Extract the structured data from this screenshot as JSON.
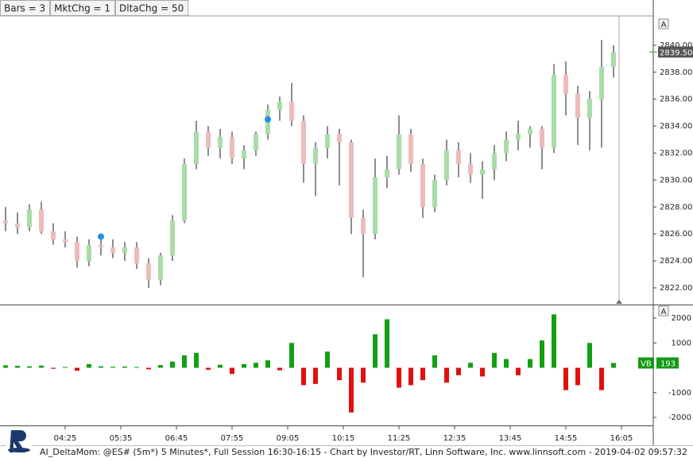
{
  "toolbar": [
    "Bars = 3",
    "MktChg = 1",
    "DltaChg = 50"
  ],
  "panel_buttons": [
    "A",
    "A"
  ],
  "footer": "AI_DeltaMom: @ES# (5m*) 5 Minutes*, Full Session 16:30-16:15 - Chart by Investor/RT, Linn Software, Inc. www.linnsoft.com - 2019-04-02 09:57:32",
  "chart_data": [
    {
      "type": "candlestick",
      "x": [
        190,
        205,
        220,
        235,
        250,
        265,
        280,
        295,
        310,
        325,
        340,
        355,
        370,
        385,
        400,
        415,
        430,
        445,
        460,
        475,
        490,
        505,
        520,
        535,
        550,
        565,
        580,
        595,
        610,
        625,
        640,
        655,
        670,
        685,
        700,
        715,
        730,
        745,
        760,
        775,
        790,
        805,
        820,
        835,
        850,
        865,
        880,
        895,
        910,
        925,
        940,
        955
      ],
      "open": [
        2827,
        2826.8,
        2826.5,
        2827.8,
        2826.2,
        2825.6,
        2825.4,
        2824,
        2825.2,
        2825,
        2824.6,
        2825,
        2823.8,
        2822.6,
        2824.4,
        2827,
        2831.2,
        2833.6,
        2832.4,
        2833.2,
        2831.6,
        2832.2,
        2833.4,
        2835.2,
        2835.8,
        2834.4,
        2831.2,
        2832.4,
        2833.4,
        2832.8,
        2827.2,
        2826,
        2830.2,
        2830.8,
        2833.4,
        2831.2,
        2828,
        2830,
        2832.2,
        2831.2,
        2830.4,
        2830.8,
        2832,
        2833,
        2833.4,
        2833.8,
        2832.4,
        2837.8,
        2836.4,
        2834.6,
        2836,
        2838.4
      ],
      "high": [
        2828,
        2827.6,
        2828.2,
        2828.4,
        2826.8,
        2826.2,
        2825.8,
        2825.6,
        2826,
        2825.6,
        2825.4,
        2825.4,
        2824.2,
        2824.6,
        2827.4,
        2831.6,
        2834.4,
        2834,
        2833.8,
        2833.6,
        2832.6,
        2833.6,
        2835.6,
        2836.2,
        2837.2,
        2834.8,
        2832.8,
        2834,
        2833.8,
        2833,
        2827.8,
        2831.6,
        2831.8,
        2834.8,
        2833.8,
        2831.6,
        2830.4,
        2833,
        2832.8,
        2832,
        2831.4,
        2832.6,
        2833.6,
        2834.4,
        2834,
        2834,
        2838.6,
        2838.8,
        2837,
        2836.6,
        2840.4,
        2840
      ],
      "low": [
        2826.2,
        2826,
        2826.2,
        2826,
        2825.2,
        2825,
        2823.5,
        2823.6,
        2824.4,
        2824.2,
        2824,
        2823.4,
        2822,
        2822.2,
        2824,
        2826.8,
        2830.8,
        2831.8,
        2831.6,
        2831.2,
        2830.8,
        2831.8,
        2833,
        2834.4,
        2834,
        2829.8,
        2828.8,
        2831.6,
        2829.6,
        2826,
        2822.8,
        2825.6,
        2829.4,
        2830.4,
        2830.6,
        2827.2,
        2827.6,
        2829.6,
        2830.2,
        2829.8,
        2828.6,
        2830,
        2831.4,
        2832.2,
        2832.4,
        2830.8,
        2832,
        2834.8,
        2832.6,
        2832.2,
        2832.4,
        2837.6
      ],
      "close": [
        2826.8,
        2826.5,
        2827.8,
        2826.2,
        2825.6,
        2825.4,
        2824,
        2825.2,
        2825,
        2824.6,
        2825,
        2823.8,
        2822.6,
        2824.4,
        2827,
        2831.2,
        2833.6,
        2832.4,
        2833.2,
        2831.6,
        2832.2,
        2833.4,
        2835.2,
        2835.8,
        2834.4,
        2831.2,
        2832.4,
        2833.4,
        2832.8,
        2827.2,
        2826,
        2830.2,
        2830.8,
        2833.4,
        2831.2,
        2828,
        2830,
        2832.2,
        2831.2,
        2830.4,
        2830.8,
        2832,
        2833,
        2833.4,
        2833.8,
        2832.4,
        2837.8,
        2836.4,
        2834.6,
        2836,
        2838.4,
        2839.5
      ],
      "up_color": "#a8dca8",
      "down_color": "#ecbcbc",
      "wick_color": "#8c8c8c",
      "markers": {
        "x": [
          310,
          520
        ],
        "y": [
          2825.8,
          2834.5
        ],
        "color": "#1e8fe8"
      },
      "last_price": {
        "value": 2839.5,
        "label": "2839.50"
      },
      "xlim": [
        183,
        1005
      ],
      "ylim": [
        2820.76,
        2842.18
      ],
      "yticks": [
        {
          "value": 2822,
          "label": "2822.00"
        },
        {
          "value": 2824,
          "label": "2824.00"
        },
        {
          "value": 2826,
          "label": "2826.00"
        },
        {
          "value": 2828,
          "label": "2828.00"
        },
        {
          "value": 2830,
          "label": "2830.00"
        },
        {
          "value": 2832,
          "label": "2832.00"
        },
        {
          "value": 2834,
          "label": "2834.00"
        },
        {
          "value": 2836,
          "label": "2836.00"
        },
        {
          "value": 2838,
          "label": "2838.00"
        },
        {
          "value": 2840,
          "label": "2840.00"
        }
      ]
    },
    {
      "type": "bar",
      "x": [
        190,
        205,
        220,
        235,
        250,
        265,
        280,
        295,
        310,
        325,
        340,
        355,
        370,
        385,
        400,
        415,
        430,
        445,
        460,
        475,
        490,
        505,
        520,
        535,
        550,
        565,
        580,
        595,
        610,
        625,
        640,
        655,
        670,
        685,
        700,
        715,
        730,
        745,
        760,
        775,
        790,
        805,
        820,
        835,
        850,
        865,
        880,
        895,
        910,
        925,
        940,
        955
      ],
      "values": [
        100,
        80,
        60,
        90,
        -40,
        30,
        -120,
        150,
        60,
        40,
        50,
        30,
        -60,
        110,
        250,
        500,
        600,
        -80,
        120,
        -250,
        150,
        200,
        300,
        -100,
        1000,
        -700,
        -650,
        650,
        -500,
        -1800,
        -600,
        1350,
        1950,
        -800,
        -700,
        -500,
        500,
        -600,
        -300,
        200,
        -350,
        600,
        350,
        -300,
        350,
        1100,
        2150,
        -900,
        -700,
        1000,
        -900,
        193
      ],
      "pos_color": "#12a012",
      "neg_color": "#e01010",
      "last_label": {
        "name": "VB",
        "value": 193
      },
      "xlim": [
        183,
        1005
      ],
      "ylim": [
        -2320,
        2512
      ],
      "yticks": [
        -2000,
        -1000,
        1000,
        2000
      ],
      "xticks": [
        {
          "value": 265,
          "label": "04:25"
        },
        {
          "value": 335,
          "label": "05:35"
        },
        {
          "value": 405,
          "label": "06:45"
        },
        {
          "value": 475,
          "label": "07:55"
        },
        {
          "value": 545,
          "label": "09:05"
        },
        {
          "value": 615,
          "label": "10:15"
        },
        {
          "value": 685,
          "label": "11:25"
        },
        {
          "value": 755,
          "label": "12:35"
        },
        {
          "value": 825,
          "label": "13:45"
        },
        {
          "value": 895,
          "label": "14:55"
        },
        {
          "value": 965,
          "label": "16:05"
        }
      ]
    }
  ]
}
